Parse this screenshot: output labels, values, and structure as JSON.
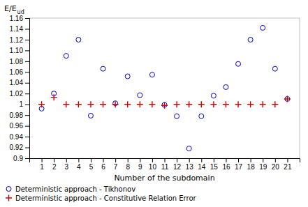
{
  "chart_data": {
    "type": "scatter",
    "xlabel": "Number of the subdomain",
    "ylabel": "E/E",
    "ylabel_subscript": "ud",
    "xlim": [
      0,
      22
    ],
    "ylim": [
      0.9,
      1.16
    ],
    "xticks": [
      1,
      2,
      3,
      4,
      5,
      6,
      7,
      8,
      9,
      10,
      11,
      12,
      13,
      14,
      15,
      16,
      17,
      18,
      19,
      20,
      21
    ],
    "yticks": [
      0.9,
      0.92,
      0.94,
      0.96,
      0.98,
      1,
      1.02,
      1.04,
      1.06,
      1.08,
      {
        "value": 1.1,
        "label": "1.10"
      },
      1.12,
      1.14,
      1.16
    ],
    "grid": false,
    "legend": "lower left",
    "series": [
      {
        "name": "Deterministic approach - Tikhonov",
        "color": "#0000cc",
        "marker": "circle",
        "x": [
          1,
          2,
          3,
          4,
          5,
          6,
          7,
          8,
          9,
          10,
          11,
          12,
          13,
          14,
          15,
          16,
          17,
          18,
          19,
          20,
          21
        ],
        "values": [
          0.992,
          1.02,
          1.09,
          1.12,
          0.979,
          1.066,
          1.002,
          1.052,
          1.017,
          1.055,
          0.999,
          0.978,
          0.918,
          0.978,
          1.016,
          1.032,
          1.075,
          1.12,
          1.142,
          1.066,
          1.01
        ]
      },
      {
        "name": "Deterministic approach - Constitutive Relation Error",
        "color": "#cc0000",
        "marker": "plus",
        "x": [
          1,
          2,
          3,
          4,
          5,
          6,
          7,
          8,
          9,
          10,
          11,
          12,
          13,
          14,
          15,
          16,
          17,
          18,
          19,
          20,
          21
        ],
        "values": [
          1.0,
          1.013,
          1.0,
          1.0,
          1.0,
          1.0,
          1.0,
          1.0,
          1.0,
          1.0,
          0.998,
          1.0,
          1.0,
          1.0,
          1.0,
          1.0,
          1.0,
          1.0,
          1.0,
          1.0,
          1.01
        ]
      }
    ]
  }
}
